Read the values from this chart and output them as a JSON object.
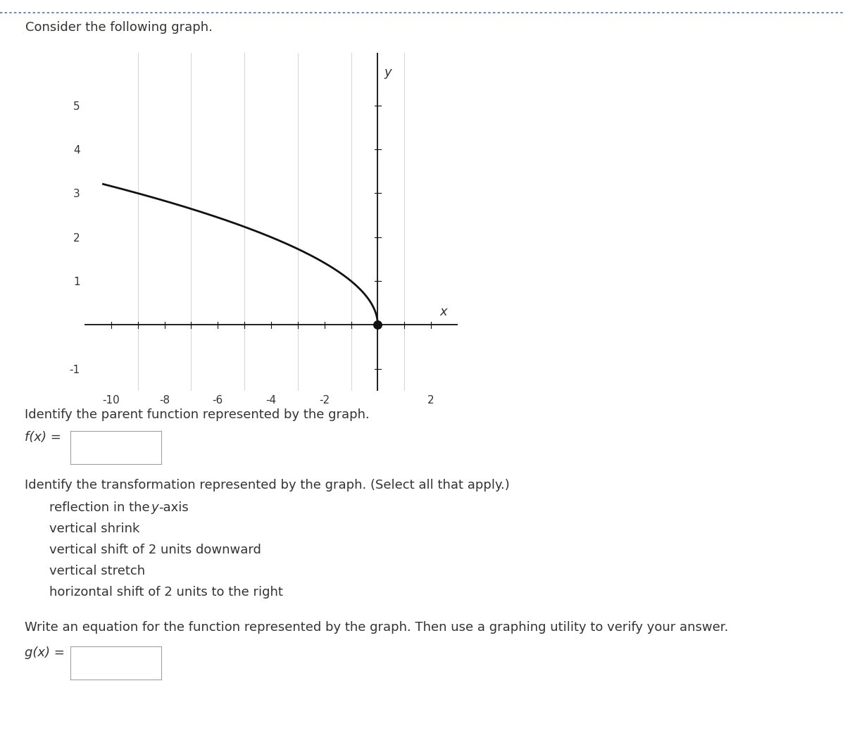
{
  "title": "Consider the following graph.",
  "graph_xlim": [
    -11,
    3
  ],
  "graph_ylim": [
    -1.5,
    6.2
  ],
  "x_ticks_labeled": [
    -10,
    -8,
    -6,
    -4,
    -2,
    2
  ],
  "y_ticks_labeled": [
    -1,
    1,
    2,
    3,
    4,
    5
  ],
  "curve_color": "#111111",
  "curve_linewidth": 2.0,
  "dot_x": 0,
  "dot_y": 0,
  "dot_size": 70,
  "dot_color": "#111111",
  "background_color": "#ffffff",
  "grid_color": "#cccccc",
  "axis_color": "#111111",
  "text_color": "#333333",
  "header_text": "Consider the following graph.",
  "parent_label": "f(x) =",
  "question1": "Identify the parent function represented by the graph.",
  "question2": "Identify the transformation represented by the graph. (Select all that apply.)",
  "options": [
    "reflection in the y-axis",
    "vertical shrink",
    "vertical shift of 2 units downward",
    "vertical stretch",
    "horizontal shift of 2 units to the right"
  ],
  "question3": "Write an equation for the function represented by the graph. Then use a graphing utility to verify your answer.",
  "gx_label": "g(x) =",
  "border_color": "#4472c4",
  "font_size_header": 13,
  "font_size_body": 13,
  "font_size_axis": 11,
  "font_size_axis_label": 13
}
